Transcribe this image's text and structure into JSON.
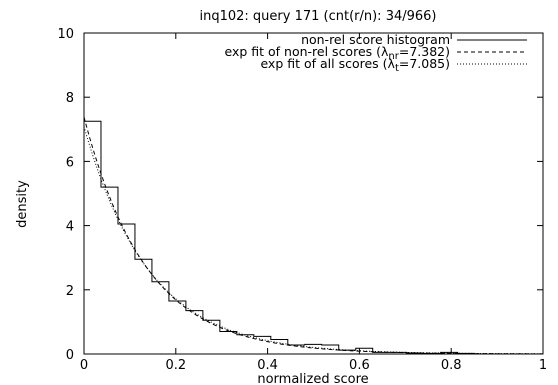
{
  "chart_data": {
    "type": "bar",
    "title": "inq102: query 171 (cnt(r/n): 34/966)",
    "xlabel": "normalized score",
    "ylabel": "density",
    "xlim": [
      0,
      1
    ],
    "ylim": [
      0,
      10
    ],
    "xticks": [
      "0",
      "0.2",
      "0.4",
      "0.6",
      "0.8",
      "1"
    ],
    "yticks": [
      "0",
      "2",
      "4",
      "6",
      "8",
      "10"
    ],
    "grid": false,
    "legend_position": "top-right",
    "series": [
      {
        "name": "non-rel score histogram",
        "kind": "histogram",
        "bin_width": 0.037,
        "bin_starts": [
          0,
          0.037,
          0.074,
          0.111,
          0.148,
          0.185,
          0.222,
          0.259,
          0.296,
          0.333,
          0.37,
          0.407,
          0.444,
          0.481,
          0.518,
          0.555,
          0.592,
          0.629,
          0.666,
          0.703,
          0.74,
          0.777,
          0.814
        ],
        "values": [
          7.25,
          5.2,
          4.05,
          2.95,
          2.25,
          1.65,
          1.35,
          1.05,
          0.7,
          0.6,
          0.55,
          0.45,
          0.28,
          0.3,
          0.28,
          0.12,
          0.18,
          0.05,
          0.05,
          0.03,
          0.02,
          0.05,
          0.02
        ]
      },
      {
        "name": "exp fit of non-rel scores (λnr=7.382)",
        "kind": "exponential",
        "lambda": 7.382,
        "dash": "dashed"
      },
      {
        "name": "exp fit of all scores (λt=7.085)",
        "kind": "exponential",
        "lambda": 7.085,
        "dash": "dotted"
      }
    ]
  },
  "legend": {
    "entries": [
      {
        "text": "non-rel score histogram"
      },
      {
        "prefix": "exp fit of non-rel scores (λ",
        "sub": "nr",
        "suffix": "=7.382)"
      },
      {
        "prefix": "exp fit of all scores (λ",
        "sub": "t",
        "suffix": "=7.085)"
      }
    ]
  }
}
